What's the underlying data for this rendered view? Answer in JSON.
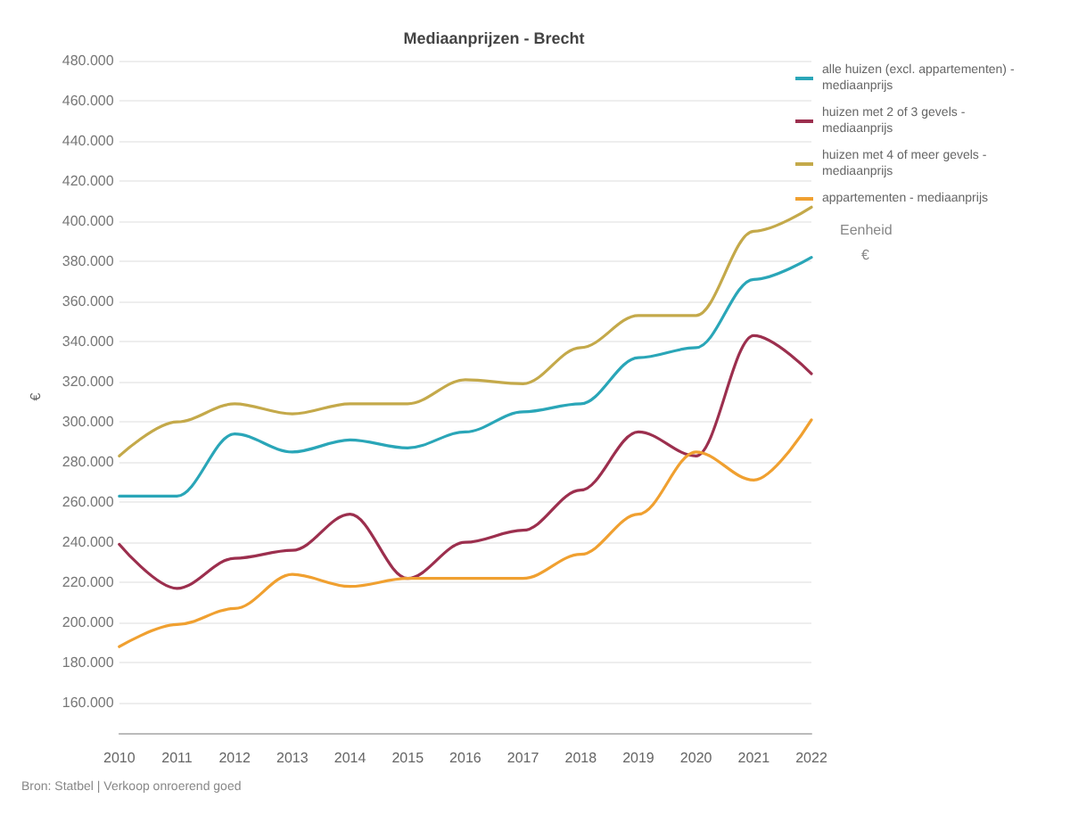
{
  "chart_data": {
    "type": "line",
    "title": "Mediaanprijzen - Brecht",
    "ylabel": "€",
    "categories": [
      "2010",
      "2011",
      "2012",
      "2013",
      "2014",
      "2015",
      "2016",
      "2017",
      "2018",
      "2019",
      "2020",
      "2021",
      "2022"
    ],
    "series": [
      {
        "name": "alle huizen (excl. appartementen) - mediaanprijs",
        "color": "#2aa6b8",
        "values": [
          263000,
          263000,
          294000,
          285000,
          291000,
          287000,
          295000,
          305000,
          309000,
          332000,
          337000,
          371000,
          382000
        ]
      },
      {
        "name": "huizen met 2 of 3 gevels - mediaanprijs",
        "color": "#9c2f4e",
        "values": [
          239000,
          217000,
          232000,
          236000,
          254000,
          222000,
          240000,
          246000,
          266000,
          295000,
          283000,
          343000,
          324000
        ]
      },
      {
        "name": "huizen met 4 of meer gevels - mediaanprijs",
        "color": "#c4a94a",
        "values": [
          283000,
          300000,
          309000,
          304000,
          309000,
          309000,
          321000,
          319000,
          337000,
          353000,
          353000,
          395000,
          407000
        ]
      },
      {
        "name": "appartementen - mediaanprijs",
        "color": "#f0a030",
        "values": [
          188000,
          199000,
          207000,
          224000,
          218000,
          222000,
          222000,
          222000,
          234000,
          254000,
          285000,
          271000,
          301000
        ]
      }
    ],
    "ylim": [
      145000,
      480000
    ],
    "yticks": [
      {
        "value": 160000,
        "label": "160.000"
      },
      {
        "value": 180000,
        "label": "180.000"
      },
      {
        "value": 200000,
        "label": "200.000"
      },
      {
        "value": 220000,
        "label": "220.000"
      },
      {
        "value": 240000,
        "label": "240.000"
      },
      {
        "value": 260000,
        "label": "260.000"
      },
      {
        "value": 280000,
        "label": "280.000"
      },
      {
        "value": 300000,
        "label": "300.000"
      },
      {
        "value": 320000,
        "label": "320.000"
      },
      {
        "value": 340000,
        "label": "340.000"
      },
      {
        "value": 360000,
        "label": "360.000"
      },
      {
        "value": 380000,
        "label": "380.000"
      },
      {
        "value": 400000,
        "label": "400.000"
      },
      {
        "value": 420000,
        "label": "420.000"
      },
      {
        "value": 440000,
        "label": "440.000"
      },
      {
        "value": 460000,
        "label": "460.000"
      },
      {
        "value": 480000,
        "label": "480.000"
      }
    ],
    "grid": "y",
    "legend": "top right",
    "marker": "none",
    "line_style": "solid",
    "annotations": [
      "Eenheid",
      "€",
      "Bron: Statbel | Verkoop onroerend goed"
    ]
  }
}
